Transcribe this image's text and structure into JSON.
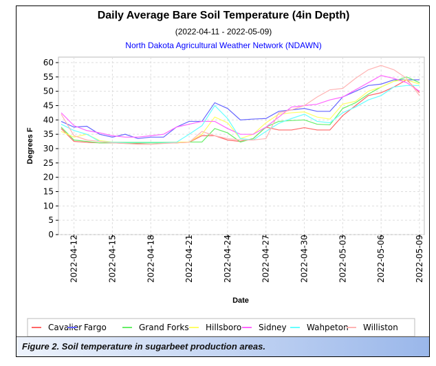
{
  "chart_data": {
    "type": "line",
    "title": "Daily Average Bare Soil Temperature (4in Depth)",
    "subtitle": "(2022-04-11 - 2022-05-09)",
    "source": "North Dakota Agricultural Weather Network (NDAWN)",
    "xlabel": "Date",
    "ylabel": "Degrees F",
    "ylim": [
      0,
      60
    ],
    "yticks": [
      0,
      5,
      10,
      15,
      20,
      25,
      30,
      35,
      40,
      45,
      50,
      55,
      60
    ],
    "x": [
      "2022-04-11",
      "2022-04-12",
      "2022-04-13",
      "2022-04-14",
      "2022-04-15",
      "2022-04-16",
      "2022-04-17",
      "2022-04-18",
      "2022-04-19",
      "2022-04-20",
      "2022-04-21",
      "2022-04-22",
      "2022-04-23",
      "2022-04-24",
      "2022-04-25",
      "2022-04-26",
      "2022-04-27",
      "2022-04-28",
      "2022-04-29",
      "2022-04-30",
      "2022-05-01",
      "2022-05-02",
      "2022-05-03",
      "2022-05-04",
      "2022-05-05",
      "2022-05-06",
      "2022-05-07",
      "2022-05-08",
      "2022-05-09"
    ],
    "xticks": [
      "2022-04-12",
      "2022-04-15",
      "2022-04-18",
      "2022-04-21",
      "2022-04-24",
      "2022-04-27",
      "2022-04-30",
      "2022-05-03",
      "2022-05-06",
      "2022-05-09"
    ],
    "grid": true,
    "legend": "bottom",
    "series": [
      {
        "name": "Cavalier",
        "color": "#ff6666",
        "values": [
          37,
          32.5,
          32.2,
          32,
          32,
          31.8,
          31.8,
          32,
          32,
          32,
          32.2,
          34.5,
          34.5,
          33,
          32.5,
          33.5,
          37.5,
          36.5,
          36.5,
          37.3,
          36.5,
          36.5,
          41.5,
          45,
          48.5,
          49.5,
          51.5,
          54,
          49.5
        ]
      },
      {
        "name": "Fargo",
        "color": "#6666ff",
        "values": [
          39.5,
          37.5,
          37.8,
          35,
          34,
          35,
          33.5,
          34,
          34,
          37.5,
          39.5,
          39.5,
          46,
          44,
          40,
          40.3,
          40.5,
          43,
          43.5,
          44,
          43,
          43,
          48,
          50,
          52,
          52.5,
          54,
          54,
          54
        ]
      },
      {
        "name": "Grand Forks",
        "color": "#66ee66",
        "values": [
          37.5,
          33,
          32.5,
          32,
          32,
          32,
          32,
          32,
          32,
          32,
          32.3,
          32.3,
          37,
          35.5,
          32.3,
          33.5,
          37.5,
          39.5,
          39.8,
          40,
          38.5,
          38.3,
          44,
          46,
          49,
          51.5,
          53.5,
          55,
          53
        ]
      },
      {
        "name": "Hillsboro",
        "color": "#ffff66",
        "values": [
          36,
          34,
          35,
          32.8,
          32.3,
          32.3,
          32.3,
          32.3,
          32.3,
          32.3,
          32.3,
          35,
          41,
          39,
          33.5,
          35,
          39,
          42,
          42.5,
          42.8,
          41,
          40.3,
          45.5,
          46.5,
          50,
          51.5,
          53.5,
          54,
          52.5
        ]
      },
      {
        "name": "Sidney",
        "color": "#ff66ff",
        "values": [
          42.5,
          38,
          36.3,
          35.5,
          34.5,
          34,
          34,
          34.5,
          35,
          37.5,
          38.5,
          39.5,
          39.5,
          37,
          35,
          35,
          37.5,
          41,
          44.5,
          45,
          45.5,
          47,
          48,
          50.5,
          53,
          55.5,
          54.5,
          53,
          50
        ]
      },
      {
        "name": "Wahpeton",
        "color": "#66ffff",
        "values": [
          38.5,
          36.3,
          35,
          32.5,
          32.2,
          32.2,
          32.2,
          32.2,
          32.2,
          32.2,
          35,
          38,
          45,
          40.5,
          33.5,
          33,
          36,
          38.8,
          40.5,
          42,
          39.5,
          39,
          42.5,
          44.5,
          47,
          48.5,
          51.5,
          52,
          52
        ]
      },
      {
        "name": "Williston",
        "color": "#ffb3b3",
        "values": [
          42,
          34.5,
          33,
          32.5,
          32,
          31.8,
          31.5,
          31.5,
          31.8,
          32,
          32.2,
          36,
          34.5,
          33.5,
          33,
          33,
          33.5,
          42.5,
          43.5,
          45,
          48,
          50.5,
          51,
          54.5,
          57.5,
          59,
          57.5,
          54.5,
          48.5
        ]
      }
    ]
  },
  "caption": "Figure 2. Soil temperature in sugarbeet production areas."
}
